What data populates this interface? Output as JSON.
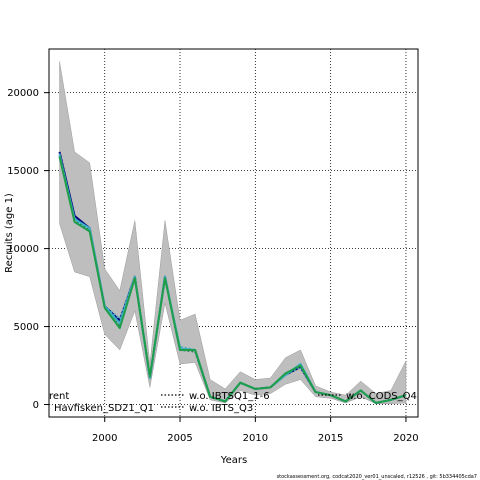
{
  "chart_data": {
    "type": "line",
    "xlabel": "Years",
    "ylabel": "Recruits (age 1)",
    "xlim": [
      1996.3,
      2020.8
    ],
    "ylim": [
      -800,
      22800
    ],
    "x_ticks": [
      2000,
      2005,
      2010,
      2015,
      2020
    ],
    "y_ticks": [
      0,
      5000,
      10000,
      15000,
      20000
    ],
    "grid": true,
    "legend_position": "bottom",
    "x": [
      1997,
      1998,
      1999,
      2000,
      2001,
      2002,
      2003,
      2004,
      2005,
      2006,
      2007,
      2008,
      2009,
      2010,
      2011,
      2012,
      2013,
      2014,
      2015,
      2016,
      2017,
      2018,
      2019,
      2020
    ],
    "band": {
      "color": "#bebebe",
      "upper": [
        22000,
        16200,
        15500,
        8700,
        7300,
        11800,
        2600,
        11800,
        5400,
        5800,
        1600,
        1000,
        2100,
        1600,
        1700,
        3000,
        3500,
        1200,
        800,
        600,
        1500,
        700,
        900,
        2800
      ],
      "lower": [
        11600,
        8500,
        8200,
        4500,
        3500,
        6000,
        1100,
        6500,
        2600,
        2700,
        300,
        100,
        900,
        600,
        700,
        1300,
        1600,
        500,
        400,
        100,
        500,
        50,
        50,
        100
      ]
    },
    "series": [
      {
        "name": "rent",
        "color": "#000080",
        "style": "solid",
        "values": [
          16200,
          12100,
          11300,
          6300,
          5400,
          8200,
          1700,
          8200,
          3500,
          3500,
          500,
          200,
          1400,
          1000,
          1100,
          1900,
          2400,
          800,
          600,
          200,
          900,
          100,
          300,
          600
        ]
      },
      {
        "name": "w.o. IBTSQ1_1-6",
        "color": "#4fa3c0",
        "style": "dotted",
        "values": [
          16100,
          11800,
          11200,
          6300,
          5500,
          8100,
          1700,
          8100,
          3700,
          3500,
          500,
          200,
          1400,
          1000,
          1100,
          1900,
          2400,
          800,
          600,
          200,
          900,
          100,
          300,
          600
        ]
      },
      {
        "name": "w.o. CODS_Q4",
        "color": "#2b7a5a",
        "style": "dotted",
        "values": [
          15900,
          11800,
          11200,
          6200,
          5000,
          8200,
          1800,
          8100,
          3500,
          3400,
          500,
          200,
          1400,
          1000,
          1100,
          1900,
          2500,
          800,
          600,
          200,
          900,
          100,
          300,
          600
        ]
      },
      {
        "name": "Havfisken_SD21_Q1",
        "color": "#3cb3c3",
        "style": "solid",
        "values": [
          16000,
          11900,
          11300,
          6300,
          5200,
          8200,
          1700,
          8200,
          3600,
          3500,
          500,
          200,
          1400,
          1000,
          1100,
          1900,
          2600,
          800,
          600,
          200,
          900,
          100,
          300,
          600
        ]
      },
      {
        "name": "w.o. IBTS_Q3",
        "color": "#1e9e4a",
        "style": "solid",
        "values": [
          15900,
          11700,
          11100,
          6200,
          4900,
          8100,
          1800,
          8100,
          3500,
          3500,
          500,
          200,
          1400,
          1000,
          1100,
          2000,
          2500,
          800,
          600,
          200,
          900,
          100,
          300,
          600
        ]
      }
    ]
  },
  "footer": "stockassessment.org, codcat2020_ver01_unscaled, r12526 , git: 5b334405cda7"
}
